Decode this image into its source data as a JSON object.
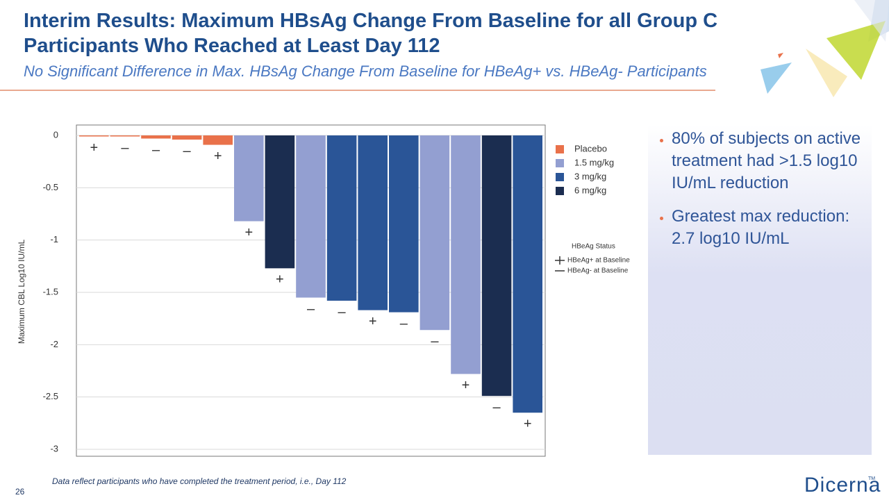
{
  "slide": {
    "title": "Interim Results: Maximum HBsAg Change From Baseline for all Group C Participants Who Reached at Least Day 112",
    "subtitle": "No Significant Difference in Max. HBsAg Change From Baseline for HBeAg+ vs. HBeAg- Participants",
    "bullets": [
      "80% of subjects on active treatment had >1.5 log10 IU/mL reduction",
      "Greatest max reduction: 2.7 log10 IU/mL"
    ],
    "footnote": "Data reflect participants who have completed the treatment period, i.e., Day 112",
    "page_number": "26",
    "logo": "Dicerna",
    "trademark": "TM"
  },
  "chart_data": {
    "type": "bar",
    "y_label": "Maximum CBL Log10 IU/mL",
    "categories": [
      null,
      null,
      null,
      null,
      null,
      null,
      null,
      null,
      null,
      null,
      null,
      null,
      null,
      null,
      null
    ],
    "series": [
      {
        "name": "Placebo",
        "color": "#E9714A",
        "values": [
          -0.01,
          -0.01,
          -0.03,
          -0.04,
          -0.09,
          null,
          null,
          null,
          null,
          null,
          null,
          null,
          null,
          null,
          null
        ]
      },
      {
        "name": "1.5 mg/kg",
        "color": "#939FD1",
        "values": [
          null,
          null,
          null,
          null,
          null,
          -0.82,
          null,
          -1.55,
          null,
          null,
          null,
          -1.86,
          -2.28,
          null,
          null
        ]
      },
      {
        "name": "3 mg/kg",
        "color": "#2A5597",
        "values": [
          null,
          null,
          null,
          null,
          null,
          null,
          null,
          null,
          -1.58,
          -1.67,
          -1.69,
          null,
          null,
          null,
          -2.65
        ]
      },
      {
        "name": "6 mg/kg",
        "color": "#1B2D50",
        "values": [
          null,
          null,
          null,
          null,
          null,
          null,
          -1.27,
          null,
          null,
          null,
          null,
          null,
          null,
          -2.49,
          null
        ]
      }
    ],
    "status_labels": [
      "+",
      "–",
      "–",
      "–",
      "+",
      "+",
      "+",
      "–",
      "–",
      "+",
      "–",
      "–",
      "+",
      "–",
      "+"
    ],
    "status_legend_title": "HBeAg Status",
    "status_legend": [
      "HBeAg+ at Baseline",
      "HBeAg- at Baseline"
    ],
    "ylim": [
      -3,
      0
    ],
    "yticks": [
      0,
      -0.5,
      -1,
      -1.5,
      -2,
      -2.5,
      -3
    ],
    "grid": true
  }
}
